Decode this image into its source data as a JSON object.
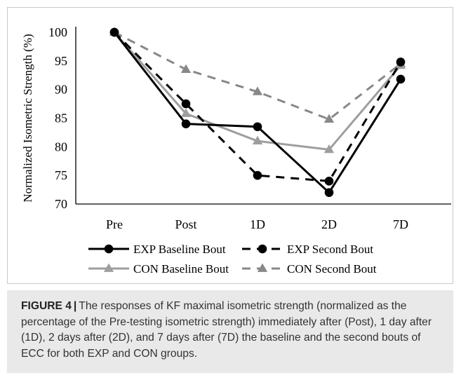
{
  "chart_data": {
    "type": "line",
    "title": "",
    "xlabel": "",
    "ylabel": "Normalized Isometric Strength (%)",
    "categories": [
      "Pre",
      "Post",
      "1D",
      "2D",
      "7D"
    ],
    "ylim": [
      70,
      100
    ],
    "yticks": [
      70,
      75,
      80,
      85,
      90,
      95,
      100
    ],
    "grid": false,
    "legend_position": "bottom",
    "series": [
      {
        "name": "EXP Baseline Bout",
        "values": [
          100,
          84,
          83.5,
          72,
          91.8
        ],
        "color": "#000000",
        "dash": "solid",
        "marker": "circle"
      },
      {
        "name": "EXP Second Bout",
        "values": [
          100,
          87.5,
          75,
          74,
          94.8
        ],
        "color": "#000000",
        "dash": "dashed",
        "marker": "circle"
      },
      {
        "name": "CON Baseline Bout",
        "values": [
          100,
          85.8,
          81,
          79.5,
          94.2
        ],
        "color": "#9e9e9e",
        "dash": "solid",
        "marker": "triangle"
      },
      {
        "name": "CON Second Bout",
        "values": [
          100,
          93.5,
          89.6,
          84.8,
          94.5
        ],
        "color": "#888888",
        "dash": "dashed",
        "marker": "triangle"
      }
    ]
  },
  "caption": {
    "label": "FIGURE 4",
    "separator": "|",
    "text": "The responses of KF maximal isometric strength (normalized as the percentage of the Pre-testing isometric strength) immediately after (Post), 1 day after (1D), 2 days after (2D), and 7 days after (7D) the baseline and the second bouts of ECC for both EXP and CON groups."
  }
}
